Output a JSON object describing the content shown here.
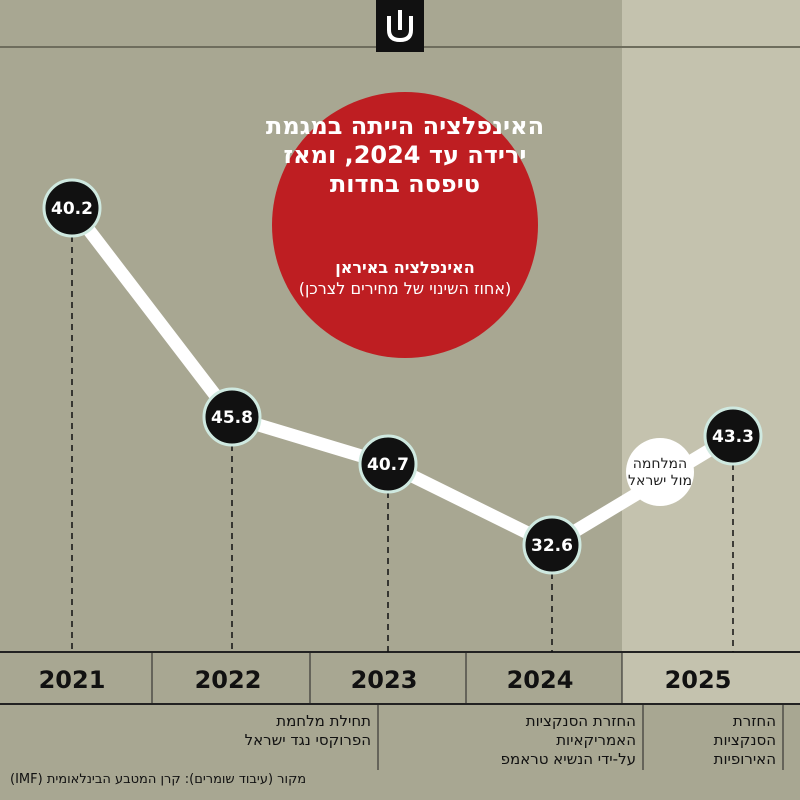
{
  "chart_data": {
    "type": "line",
    "title": "האינפלציה הייתה במגמת ירידה עד 2024, ומאז טיפסה בחדות",
    "subtitle_bold": "האינפלציה באיראן",
    "subtitle": "(אחוז השינוי של מחירים לצרכן)",
    "categories": [
      "2021",
      "2022",
      "2023",
      "2024",
      "2025"
    ],
    "values": [
      40.2,
      45.8,
      40.7,
      32.6,
      43.3
    ],
    "value_labels": [
      "40.2",
      "45.8",
      "40.7",
      "32.6",
      "43.3"
    ],
    "annotations": [
      {
        "id": "war",
        "text_line1": "המלחמה",
        "text_line2": "מול ישראל"
      },
      {
        "id": "proxy-war",
        "text_line1": "תחילת מלחמת",
        "text_line2": "הפרוקסי נגד ישראל"
      },
      {
        "id": "us-sanctions",
        "text_line1": "החזרת הסנקציות",
        "text_line2": "האמריקאיות",
        "text_line3": "על-ידי הנשיא טראמפ"
      },
      {
        "id": "eu-sanctions",
        "text_line1": "החזרת",
        "text_line2": "הסנקציות",
        "text_line3": "האירופיות"
      }
    ],
    "source": "מקור (עיבוד שומרים): קרן המטבע הבינלאומית (IMF)"
  },
  "colors": {
    "background": "#a8a792",
    "highlight_band": "#c4c2ae",
    "bubble": "#be1e22",
    "line": "#ffffff",
    "marker": "#111111",
    "marker_ring": "#cfe9e0"
  },
  "logo": {
    "icon": "shomrim-logo-icon"
  }
}
